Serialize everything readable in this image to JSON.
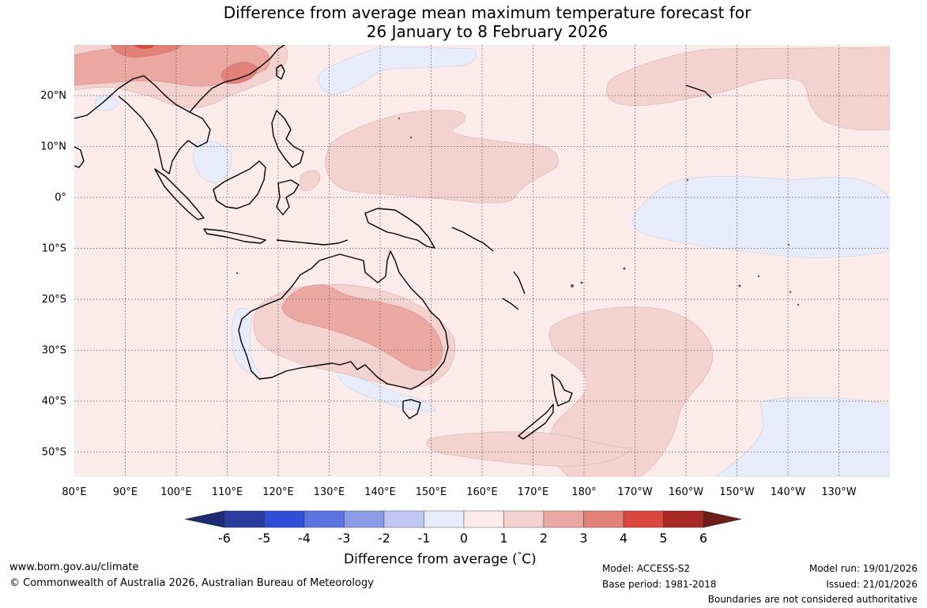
{
  "title": {
    "line1": "Difference from average mean maximum temperature forecast for",
    "line2": "26 January to 8 February 2026"
  },
  "axes": {
    "lon_labels": [
      "80°E",
      "90°E",
      "100°E",
      "110°E",
      "120°E",
      "130°E",
      "140°E",
      "150°E",
      "160°E",
      "170°E",
      "180°",
      "170°W",
      "160°W",
      "150°W",
      "140°W",
      "130°W"
    ],
    "lat_labels": [
      "20°N",
      "10°N",
      "0°",
      "10°S",
      "20°S",
      "30°S",
      "40°S",
      "50°S"
    ]
  },
  "colorbar": {
    "tick_labels": [
      "-6",
      "-5",
      "-4",
      "-3",
      "-2",
      "-1",
      "0",
      "1",
      "2",
      "3",
      "4",
      "5",
      "6"
    ],
    "colors": [
      "#2a3c9e",
      "#2e4fd6",
      "#5d73e0",
      "#8c9be6",
      "#bfc7f2",
      "#e8ebfa",
      "#fbeceb",
      "#f4d2d0",
      "#eba7a2",
      "#e2807a",
      "#d9473d",
      "#a82924"
    ],
    "under_color": "#1d2a73",
    "over_color": "#6e1e1a",
    "label": "Difference from average (",
    "label_degree": "°",
    "label_unit": "C)"
  },
  "map_palette": {
    "ocean": "#fbeceb",
    "cool": "#e8ebfa",
    "warm1": "#f4d2d0",
    "warm2": "#eba7a2",
    "warm3": "#e2807a",
    "warm4": "#d9473d",
    "coast": "#000000",
    "grid": "#555555"
  },
  "footer": {
    "website": "www.bom.gov.au/climate",
    "copyright": "© Commonwealth of Australia 2026, Australian Bureau of Meteorology",
    "model": "Model: ACCESS-S2",
    "base_period": "Base period: 1981-2018",
    "model_run": "Model run: 19/01/2026",
    "issued": "Issued: 21/01/2026",
    "disclaimer": "Boundaries are not considered authoritative"
  }
}
